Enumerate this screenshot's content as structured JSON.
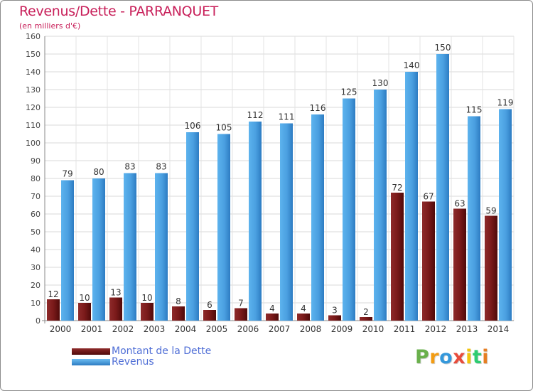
{
  "header": {
    "title": "Revenus/Dette - PARRANQUET",
    "subtitle": "(en milliers d'€)"
  },
  "chart_data": {
    "type": "bar",
    "title": "Revenus/Dette - PARRANQUET",
    "subtitle": "(en milliers d'€)",
    "categories": [
      "2000",
      "2001",
      "2002",
      "2003",
      "2004",
      "2005",
      "2006",
      "2007",
      "2008",
      "2009",
      "2010",
      "2011",
      "2012",
      "2013",
      "2014"
    ],
    "series": [
      {
        "name": "Montant de la Dette",
        "color": "#7a1a1a",
        "values": [
          12,
          10,
          13,
          10,
          8,
          6,
          7,
          4,
          4,
          3,
          2,
          72,
          67,
          63,
          59
        ]
      },
      {
        "name": "Revenus",
        "color": "#4a9fe0",
        "values": [
          79,
          80,
          83,
          83,
          106,
          105,
          112,
          111,
          116,
          125,
          130,
          140,
          150,
          115,
          119
        ]
      }
    ],
    "ylim": [
      0,
      160
    ],
    "yticks": [
      0,
      10,
      20,
      30,
      40,
      50,
      60,
      70,
      80,
      90,
      100,
      110,
      120,
      130,
      140,
      150,
      160
    ],
    "grid": true,
    "legend_position": "bottom-left"
  },
  "logo": {
    "letters": [
      "P",
      "r",
      "o",
      "x",
      "i",
      "t",
      "i"
    ],
    "colors": [
      "#6ab04c",
      "#f39c12",
      "#3498db",
      "#e74c3c",
      "#f1c40f",
      "#2ecc71",
      "#e67e22"
    ]
  }
}
